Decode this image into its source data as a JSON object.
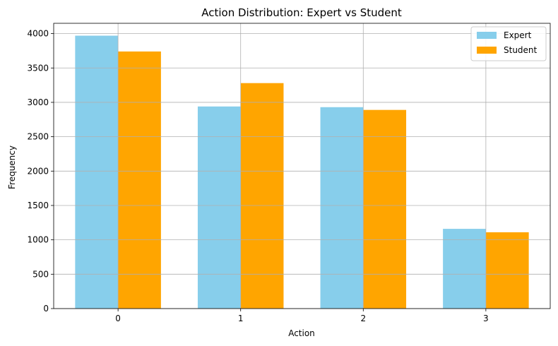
{
  "chart_data": {
    "type": "bar",
    "title": "Action Distribution: Expert vs Student",
    "xlabel": "Action",
    "ylabel": "Frequency",
    "categories": [
      "0",
      "1",
      "2",
      "3"
    ],
    "series": [
      {
        "name": "Expert",
        "color": "#87ceeb",
        "values": [
          3970,
          2940,
          2930,
          1160
        ]
      },
      {
        "name": "Student",
        "color": "#ffa500",
        "values": [
          3740,
          3280,
          2890,
          1110
        ]
      }
    ],
    "ylim": [
      0,
      4150
    ],
    "yticks": [
      0,
      500,
      1000,
      1500,
      2000,
      2500,
      3000,
      3500,
      4000
    ],
    "grid": true,
    "legend_position": "top-right"
  }
}
